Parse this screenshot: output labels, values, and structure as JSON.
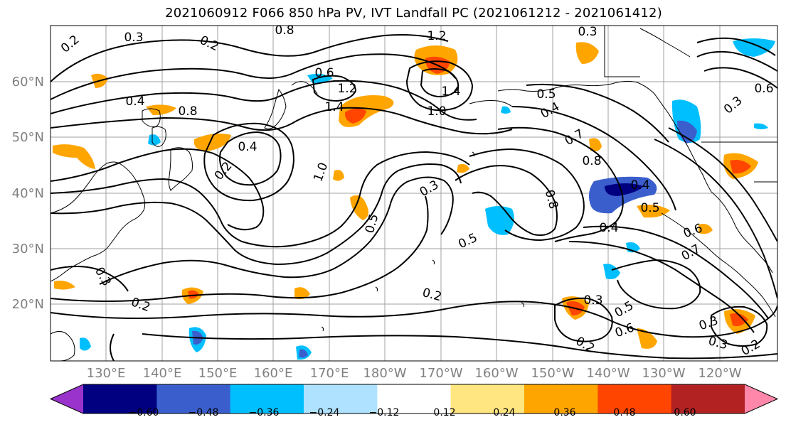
{
  "title": "2021060912 F066 850 hPa PV, IVT Landfall PC (2021061212 - 2021061412)",
  "lat_labels": [
    "60°N",
    "50°N",
    "40°N",
    "30°N",
    "20°N"
  ],
  "lon_labels": [
    "130°E",
    "140°E",
    "150°E",
    "160°E",
    "170°E",
    "180°W",
    "170°W",
    "160°W",
    "150°W",
    "140°W",
    "130°W",
    "120°W"
  ],
  "colorbar": {
    "ticks": [
      "−0.60",
      "−0.48",
      "−0.36",
      "−0.24",
      "−0.12",
      "0.12",
      "0.24",
      "0.36",
      "0.48",
      "0.60"
    ],
    "colors": [
      "#9933cc",
      "#000080",
      "#3a5fcd",
      "#00bfff",
      "#aee2ff",
      "#ffffff",
      "#ffe680",
      "#ffa500",
      "#ff4500",
      "#b22222",
      "#ff88aa"
    ]
  },
  "contour_labels": [
    {
      "text": "0.3"
    },
    {
      "text": "0.2"
    },
    {
      "text": "0.8"
    },
    {
      "text": "1.2"
    },
    {
      "text": "0.3"
    },
    {
      "text": "0.4"
    },
    {
      "text": "0.2"
    },
    {
      "text": "0.6"
    },
    {
      "text": "1.2"
    },
    {
      "text": "1.4"
    },
    {
      "text": "1.4"
    },
    {
      "text": "0.5"
    },
    {
      "text": "1.0"
    },
    {
      "text": "0.4"
    },
    {
      "text": "0.8"
    },
    {
      "text": "1.0"
    },
    {
      "text": "0.4"
    },
    {
      "text": "0.7"
    },
    {
      "text": "0.8"
    },
    {
      "text": "0.2"
    },
    {
      "text": "0.3"
    },
    {
      "text": "0.8"
    },
    {
      "text": "0.4"
    },
    {
      "text": "0.5"
    },
    {
      "text": "0.4"
    },
    {
      "text": "0.5"
    },
    {
      "text": "0.6"
    },
    {
      "text": "0.7"
    },
    {
      "text": "0.5"
    },
    {
      "text": "0.3"
    },
    {
      "text": "0.2"
    },
    {
      "text": "0.3"
    },
    {
      "text": "0.5"
    },
    {
      "text": "0.6"
    },
    {
      "text": "0.2"
    },
    {
      "text": "0.2"
    },
    {
      "text": "0.3"
    },
    {
      "text": "0.2"
    },
    {
      "text": "0.3"
    },
    {
      "text": "0.6"
    },
    {
      "text": "0.3"
    }
  ]
}
